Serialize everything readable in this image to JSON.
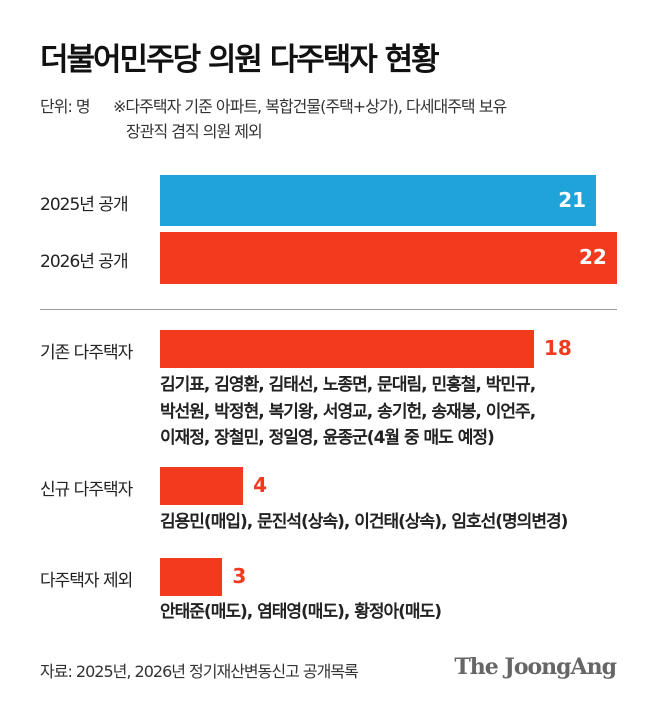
{
  "title": "더불어민주당 의원 다주택자 현황",
  "unit": "단위: 명",
  "note_line1": "※다주택자 기준 아파트, 복합건물(주택+상가), 다세대주택 보유",
  "note_line2": "장관직 겸직 의원 제외",
  "chart_data": {
    "type": "bar",
    "orientation": "horizontal",
    "categories": [
      "2025년 공개",
      "2026년 공개",
      "기존 다주택자",
      "신규 다주택자",
      "다주택자 제외"
    ],
    "values": [
      21,
      22,
      18,
      4,
      3
    ],
    "colors": [
      "#1fa3d9",
      "#f23a1f",
      "#f23a1f",
      "#f23a1f",
      "#f23a1f"
    ],
    "value_label_colors": [
      "#ffffff",
      "#ffffff",
      "#f23a1f",
      "#f23a1f",
      "#f23a1f"
    ],
    "xlim": [
      0,
      22
    ]
  },
  "names": {
    "existing": [
      "김기표, 김영환, 김태선, 노종면, 문대림, 민홍철, 박민규,",
      "박선원, 박정현, 복기왕, 서영교, 송기헌, 송재봉, 이언주,",
      "이재정, 장철민, 정일영, 윤종군(4월 중 매도 예정)"
    ],
    "new": [
      "김용민(매입), 문진석(상속), 이건태(상속), 임호선(명의변경)"
    ],
    "excluded": [
      "안태준(매도), 염태영(매도), 황정아(매도)"
    ]
  },
  "source": "자료: 2025년, 2026년 정기재산변동신고 공개목록",
  "logo": "The JoongAng"
}
